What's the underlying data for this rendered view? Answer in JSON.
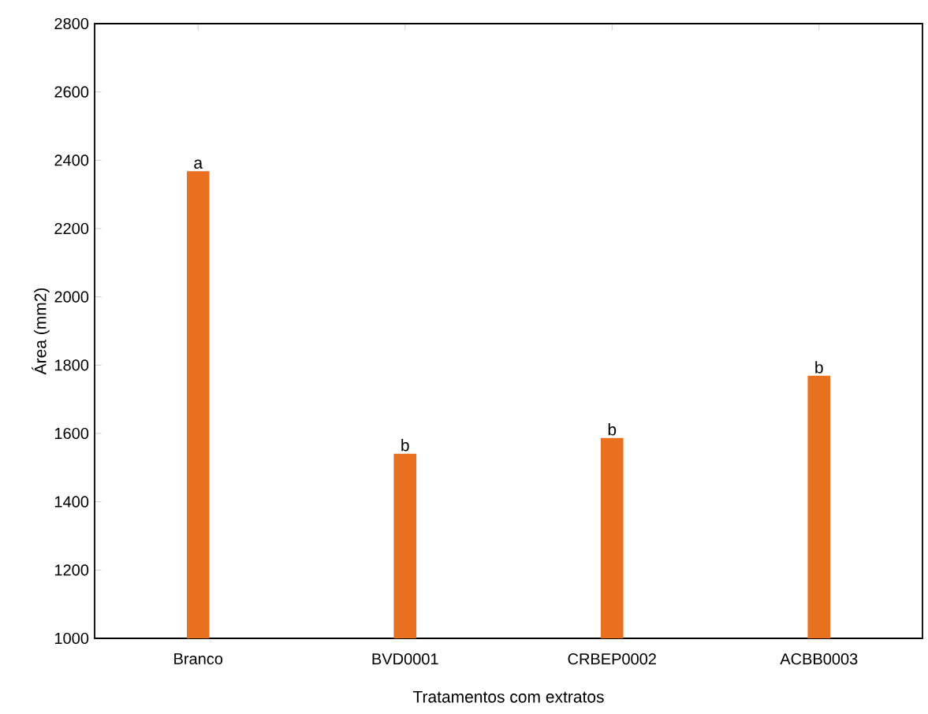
{
  "chart_data": {
    "type": "bar",
    "xlabel": "Tratamentos com extratos",
    "ylabel": "Área (mm2)",
    "categories": [
      "Branco",
      "BVD0001",
      "CRBEP0002",
      "ACBB0003"
    ],
    "values": [
      2365,
      1538,
      1584,
      1766
    ],
    "color": "#e8701f",
    "ylim": [
      1000,
      2800
    ],
    "yticks": [
      1000,
      1200,
      1400,
      1600,
      1800,
      2000,
      2200,
      2400,
      2600,
      2800
    ],
    "annotations": [
      {
        "text": "a",
        "x": "Branco",
        "y": 2365
      },
      {
        "text": "b",
        "x": "BVD0001",
        "y": 1538
      },
      {
        "text": "b",
        "x": "CRBEP0002",
        "y": 1584
      },
      {
        "text": "b",
        "x": "ACBB0003",
        "y": 1766
      }
    ]
  }
}
